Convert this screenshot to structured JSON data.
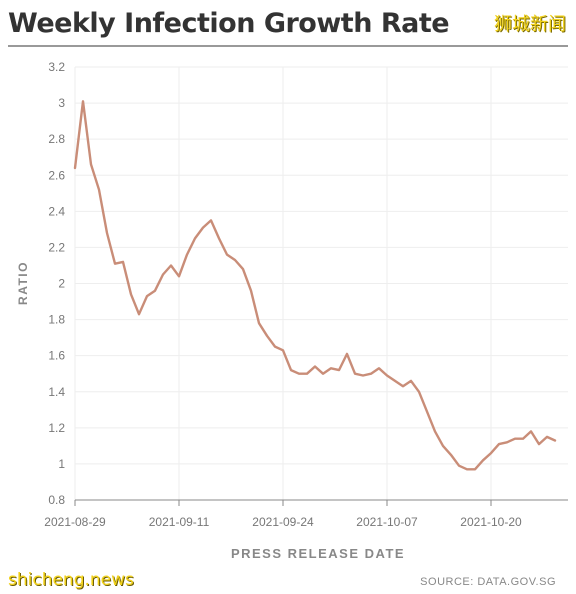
{
  "header": {
    "title": "Weekly Infection Growth Rate",
    "watermark": "狮城新闻"
  },
  "footer": {
    "watermark": "shicheng.news",
    "source": "SOURCE: DATA.GOV.SG"
  },
  "colors": {
    "line": "#c98d78",
    "grid": "#eeeeee",
    "axis": "#888888",
    "text": "#777777"
  },
  "chart_data": {
    "type": "line",
    "title": "Weekly Infection Growth Rate",
    "xlabel": "PRESS RELEASE DATE",
    "ylabel": "RATIO",
    "ylim": [
      0.8,
      3.2
    ],
    "yticks": [
      "0.8",
      "1",
      "1.2",
      "1.4",
      "1.6",
      "1.8",
      "2",
      "2.2",
      "2.4",
      "2.6",
      "2.8",
      "3",
      "3.2"
    ],
    "xticks": [
      "2021-08-29",
      "2021-09-11",
      "2021-09-24",
      "2021-10-07",
      "2021-10-20"
    ],
    "xstart": "2021-08-29",
    "grid": true,
    "series": [
      {
        "values": [
          2.64,
          3.01,
          2.66,
          2.52,
          2.28,
          2.11,
          2.12,
          1.94,
          1.83,
          1.93,
          1.96,
          2.05,
          2.1,
          2.04,
          2.16,
          2.25,
          2.31,
          2.35,
          2.25,
          2.16,
          2.13,
          2.08,
          1.96,
          1.78,
          1.71,
          1.65,
          1.63,
          1.52,
          1.5,
          1.5,
          1.54,
          1.5,
          1.53,
          1.52,
          1.61,
          1.5,
          1.49,
          1.5,
          1.53,
          1.49,
          1.46,
          1.43,
          1.46,
          1.4,
          1.29,
          1.18,
          1.1,
          1.05,
          0.99,
          0.97,
          0.97,
          1.02,
          1.06,
          1.11,
          1.12,
          1.14,
          1.14,
          1.18,
          1.11,
          1.15,
          1.13
        ]
      }
    ]
  }
}
